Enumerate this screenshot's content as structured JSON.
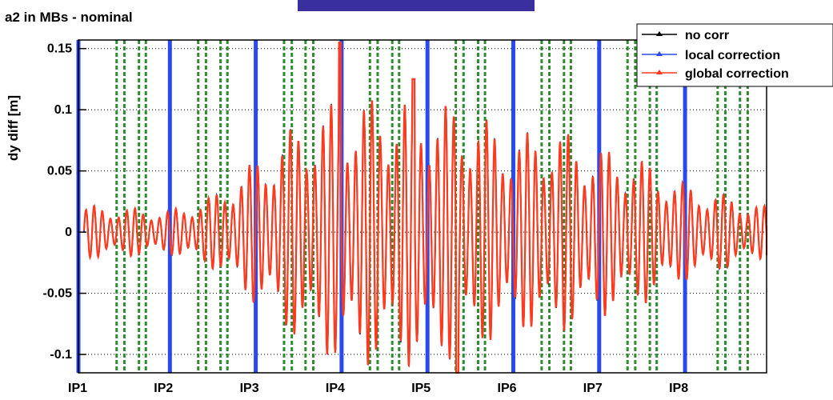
{
  "chart_data": {
    "type": "line",
    "title": "a2 in MBs - nominal",
    "ylabel": "dy diff [m]",
    "xlabel": "",
    "ylim": [
      -0.115,
      0.157
    ],
    "yticks": [
      {
        "value": 0.15,
        "label": "0.15"
      },
      {
        "value": 0.1,
        "label": "0.1"
      },
      {
        "value": 0.05,
        "label": "0.05"
      },
      {
        "value": 0,
        "label": "0"
      },
      {
        "value": -0.05,
        "label": "-0.05"
      },
      {
        "value": -0.1,
        "label": "-0.1"
      }
    ],
    "ip_labels": [
      "IP1",
      "IP2",
      "IP3",
      "IP4",
      "IP5",
      "IP6",
      "IP7",
      "IP8"
    ],
    "ip_positions": [
      0,
      1,
      2,
      3,
      4,
      5,
      6,
      7
    ],
    "x_range": [
      0,
      8
    ],
    "ip_marker_lines": [
      1,
      2,
      3,
      4,
      5,
      6,
      7
    ],
    "dashed_lines": [
      0.38,
      0.47,
      0.64,
      0.72,
      1.33,
      1.42,
      1.59,
      1.67,
      2.33,
      2.42,
      2.58,
      2.67,
      3.33,
      3.42,
      3.59,
      3.67,
      4.33,
      4.42,
      4.59,
      4.67,
      5.33,
      5.42,
      5.59,
      5.67,
      6.33,
      6.42,
      6.59,
      6.67,
      7.38,
      7.47,
      7.64,
      7.73
    ],
    "grid": true,
    "legend_placement": "top-right",
    "series": [
      {
        "name": "no corr",
        "color": "#000000"
      },
      {
        "name": "local correction",
        "color": "#2a4af0"
      },
      {
        "name": "global correction",
        "color": "#ff3b1f"
      }
    ],
    "envelope": {
      "x": [
        0,
        0.5,
        1,
        1.5,
        2,
        2.5,
        3,
        3.5,
        4,
        4.5,
        5,
        5.5,
        6,
        6.5,
        7,
        7.5,
        8
      ],
      "amplitude": [
        0.022,
        0.02,
        0.018,
        0.03,
        0.06,
        0.09,
        0.11,
        0.11,
        0.11,
        0.1,
        0.08,
        0.085,
        0.07,
        0.06,
        0.04,
        0.03,
        0.02
      ]
    },
    "peaks": [
      {
        "x": 2.98,
        "y": 0.155,
        "label": ""
      },
      {
        "x": 3.84,
        "y": 0.125,
        "label": ""
      },
      {
        "x": 4.35,
        "y": -0.115,
        "label": ""
      }
    ]
  },
  "colors": {
    "ip_line": "#2a4af0",
    "dashed": "#2e8b2e",
    "top_bar": "#3a2f9e"
  }
}
